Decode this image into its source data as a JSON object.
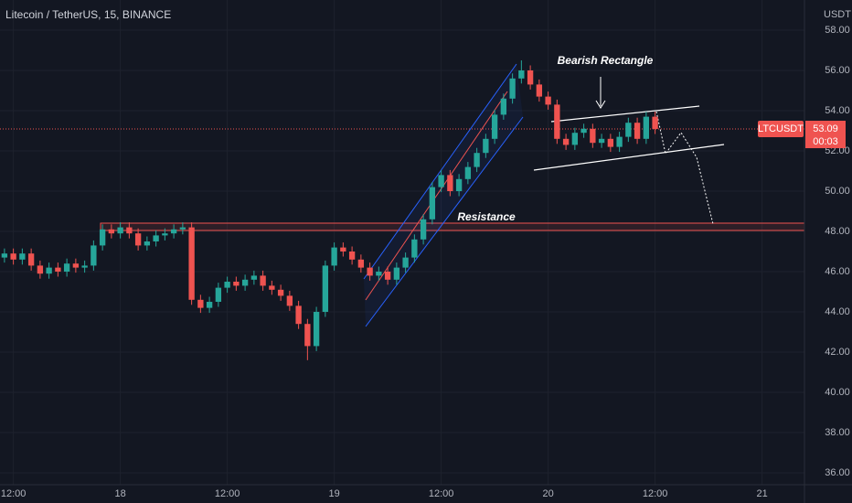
{
  "chart_data": {
    "type": "candlestick",
    "title": "Litecoin / TetherUS, 15, BINANCE",
    "currency_label": "USDT",
    "symbol_label": "LTCUSDT",
    "last_price": 53.09,
    "countdown": "00:03",
    "annotations": [
      "Bearish Rectangle",
      "Resistance"
    ],
    "up_color": "#26a69a",
    "down_color": "#ef5350",
    "grid": true,
    "x": [
      0.5,
      1.5,
      2.5,
      3.5,
      4.5,
      5.5,
      6.5,
      7.5,
      8.5,
      9.5,
      10.5,
      11.5,
      12.5,
      13.5,
      14.5,
      15.5,
      16.5,
      17.5,
      18.5,
      19.5,
      20.5,
      21.5,
      22.5,
      23.5,
      24.5,
      25.5,
      26.5,
      27.5,
      28.5,
      29.5,
      30.5,
      31.5,
      32.5,
      33.5,
      34.5,
      35.5,
      36.5,
      37.5,
      38.5,
      39.5,
      40.5,
      41.5,
      42.5,
      43.5,
      44.5,
      45.5,
      46.5,
      47.5,
      48.5,
      49.5,
      50.5,
      51.5,
      52.5,
      53.5,
      54.5,
      55.5,
      56.5,
      57.5,
      58.5,
      59.5,
      60.5,
      61.5,
      62.5,
      63.5,
      64.5,
      65.5,
      66.5,
      67.5,
      68.5,
      69.5,
      70.5,
      71.5,
      72.5,
      73.5
    ],
    "open": [
      46.7,
      46.9,
      46.6,
      46.9,
      46.3,
      45.9,
      46.2,
      46.0,
      46.4,
      46.2,
      46.3,
      47.3,
      48.1,
      47.9,
      48.2,
      47.9,
      47.3,
      47.5,
      47.8,
      47.9,
      48.1,
      48.2,
      44.6,
      44.2,
      44.5,
      45.2,
      45.5,
      45.3,
      45.6,
      45.8,
      45.3,
      45.1,
      44.8,
      44.3,
      43.4,
      42.3,
      44.0,
      46.3,
      47.2,
      47.0,
      46.6,
      46.2,
      45.8,
      46.0,
      45.6,
      46.2,
      46.7,
      47.6,
      48.6,
      50.2,
      50.8,
      50.0,
      50.6,
      51.2,
      51.9,
      52.6,
      53.8,
      54.6,
      55.6,
      56.0,
      55.3,
      54.7,
      54.3,
      52.6,
      52.3,
      52.9,
      53.1,
      52.4,
      52.6,
      52.2,
      52.7,
      53.4,
      52.6,
      53.7
    ],
    "high": [
      47.15,
      47.15,
      47.15,
      47.15,
      46.55,
      46.45,
      46.45,
      46.65,
      46.65,
      46.55,
      47.55,
      48.35,
      48.35,
      48.45,
      48.45,
      48.15,
      47.75,
      48.05,
      48.15,
      48.35,
      48.45,
      48.45,
      44.85,
      44.75,
      45.45,
      45.75,
      45.75,
      45.85,
      46.05,
      46.05,
      45.55,
      45.35,
      45.05,
      44.55,
      43.65,
      44.25,
      46.55,
      47.45,
      47.45,
      47.25,
      46.85,
      46.45,
      46.25,
      46.25,
      46.45,
      46.95,
      47.85,
      48.85,
      50.45,
      51.05,
      51.05,
      50.85,
      51.45,
      52.15,
      52.85,
      54.05,
      54.85,
      55.85,
      56.5,
      56.25,
      55.55,
      54.95,
      54.55,
      52.85,
      53.15,
      53.35,
      53.35,
      52.85,
      52.85,
      52.95,
      53.65,
      53.65,
      53.95,
      53.95
    ],
    "low": [
      46.45,
      46.35,
      46.35,
      46.05,
      45.65,
      45.65,
      45.75,
      45.75,
      45.95,
      45.95,
      46.05,
      47.05,
      47.65,
      47.65,
      47.65,
      47.05,
      47.05,
      47.25,
      47.55,
      47.65,
      47.85,
      44.35,
      43.95,
      43.95,
      44.25,
      44.95,
      45.05,
      45.05,
      45.35,
      45.05,
      44.85,
      44.55,
      44.05,
      43.15,
      41.6,
      42.05,
      43.75,
      46.05,
      46.75,
      46.35,
      45.95,
      45.55,
      45.55,
      45.35,
      45.35,
      45.95,
      46.45,
      47.35,
      48.35,
      49.95,
      49.75,
      49.75,
      50.35,
      50.95,
      51.65,
      52.35,
      53.55,
      54.35,
      55.35,
      55.05,
      54.45,
      54.05,
      52.35,
      52.05,
      52.05,
      52.65,
      52.15,
      52.15,
      51.95,
      51.95,
      52.45,
      52.35,
      52.35,
      52.84
    ],
    "close": [
      46.9,
      46.6,
      46.9,
      46.3,
      45.9,
      46.2,
      46.0,
      46.4,
      46.2,
      46.3,
      47.3,
      48.1,
      47.9,
      48.2,
      47.9,
      47.3,
      47.5,
      47.8,
      47.9,
      48.1,
      48.2,
      44.6,
      44.2,
      44.5,
      45.2,
      45.5,
      45.3,
      45.6,
      45.8,
      45.3,
      45.1,
      44.8,
      44.3,
      43.4,
      42.3,
      44.0,
      46.3,
      47.2,
      47.0,
      46.6,
      46.2,
      45.8,
      46.0,
      45.6,
      46.2,
      46.7,
      47.6,
      48.6,
      50.2,
      50.8,
      50.0,
      50.6,
      51.2,
      51.9,
      52.6,
      53.8,
      54.6,
      55.6,
      56.0,
      55.3,
      54.7,
      54.3,
      52.6,
      52.3,
      52.9,
      53.1,
      52.4,
      52.6,
      52.2,
      52.7,
      53.4,
      52.6,
      53.7,
      53.09
    ],
    "xlim": [
      0,
      90.26
    ],
    "xticks": [
      {
        "value": 1.5,
        "label": "12:00"
      },
      {
        "value": 13.5,
        "label": "18"
      },
      {
        "value": 25.5,
        "label": "12:00"
      },
      {
        "value": 37.5,
        "label": "19"
      },
      {
        "value": 49.5,
        "label": "12:00"
      },
      {
        "value": 61.5,
        "label": "20"
      },
      {
        "value": 73.5,
        "label": "12:00"
      },
      {
        "value": 85.5,
        "label": "21"
      }
    ],
    "ylim": [
      35.41,
      59.5
    ],
    "yticks": [
      {
        "value": 36,
        "label": "36.00"
      },
      {
        "value": 38,
        "label": "38.00"
      },
      {
        "value": 40,
        "label": "40.00"
      },
      {
        "value": 42,
        "label": "42.00"
      },
      {
        "value": 44,
        "label": "44.00"
      },
      {
        "value": 46,
        "label": "46.00"
      },
      {
        "value": 48,
        "label": "48.00"
      },
      {
        "value": 50,
        "label": "50.00"
      },
      {
        "value": 52,
        "label": "52.00"
      },
      {
        "value": 54,
        "label": "54.00"
      },
      {
        "value": 56,
        "label": "56.00"
      },
      {
        "value": 58,
        "label": "58.00"
      }
    ]
  }
}
